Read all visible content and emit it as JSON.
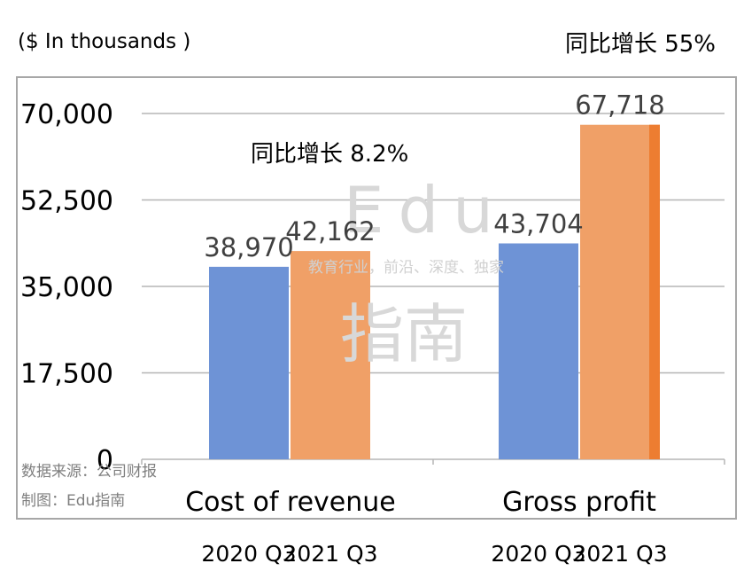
{
  "unit_label": "($ In thousands )",
  "annotations": {
    "growth_gross_profit": "同比增长 55%",
    "growth_cost_of_revenue": "同比增长 8.2%"
  },
  "source": {
    "line1": "数据来源：公司财报",
    "line2": "制图：Edu指南"
  },
  "watermark": {
    "top": "Edu",
    "middle": "教育行业，前沿、深度、独家",
    "bottom": "指南"
  },
  "colors": {
    "series_2020": "#6e93d6",
    "series_2021": "#f0a067",
    "series_2021_edge": "#ed7d31"
  },
  "chart_data": {
    "type": "bar",
    "categories": [
      "Cost of revenue",
      "Gross profit"
    ],
    "series": [
      {
        "name": "2020 Q3",
        "values": [
          38970,
          43704
        ]
      },
      {
        "name": "2021 Q3",
        "values": [
          42162,
          67718
        ]
      }
    ],
    "data_labels": [
      [
        "38,970",
        "43,704"
      ],
      [
        "42,162",
        "67,718"
      ]
    ],
    "y_ticks": [
      "0",
      "17,500",
      "35,000",
      "52,500",
      "70,000"
    ],
    "ylim": [
      0,
      70000
    ],
    "xlabel": "",
    "ylabel": "",
    "title": "",
    "grid": true,
    "legend": "below categories"
  }
}
